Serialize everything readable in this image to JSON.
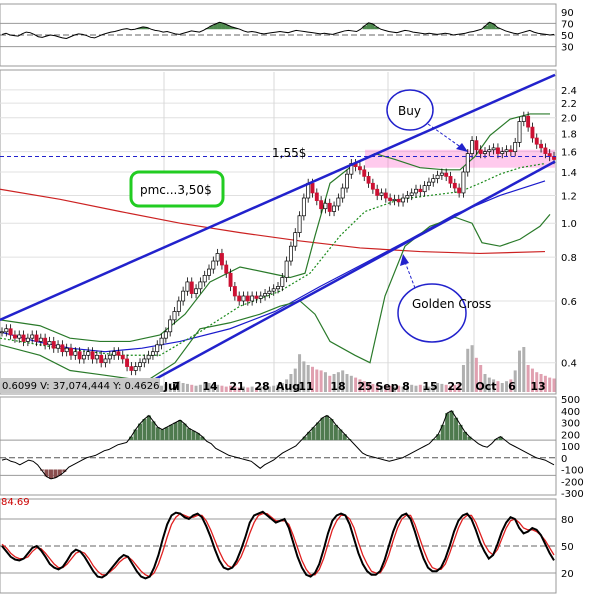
{
  "chart_data": [
    {
      "panel": "rsi",
      "type": "area",
      "ylim": [
        0,
        100
      ],
      "ticks": [
        "90",
        "70",
        "50",
        "30"
      ],
      "ref_lines": [
        70,
        50,
        30
      ],
      "values": [
        51,
        53,
        50,
        49,
        48,
        52,
        55,
        54,
        51,
        47,
        46,
        48,
        50,
        49,
        47,
        45,
        44,
        47,
        50,
        52,
        51,
        49,
        46,
        45,
        48,
        51,
        53,
        55,
        56,
        58,
        60,
        61,
        59,
        60,
        62,
        64,
        63,
        60,
        58,
        57,
        55,
        56,
        54,
        52,
        51,
        53,
        55,
        57,
        56,
        55,
        58,
        62,
        66,
        69,
        72,
        70,
        67,
        64,
        62,
        60,
        57,
        55,
        56,
        55,
        53,
        52,
        53,
        54,
        55,
        56,
        55,
        54,
        56,
        58,
        57,
        56,
        55,
        54,
        53,
        52,
        53,
        52,
        51,
        53,
        55,
        57,
        58,
        57,
        56,
        60,
        66,
        71,
        69,
        64,
        60,
        58,
        56,
        55,
        54,
        56,
        58,
        57,
        55,
        54,
        53,
        52,
        53,
        52,
        51,
        52,
        53,
        52,
        50,
        51,
        52,
        53,
        55,
        56,
        58,
        60,
        66,
        72,
        69,
        63,
        60,
        57,
        55,
        53,
        52,
        54,
        56,
        58,
        55,
        53,
        52,
        51,
        50,
        51
      ]
    },
    {
      "panel": "price",
      "type": "candlestick",
      "scale": "log",
      "ylim": [
        0.33,
        2.7
      ],
      "ticks": [
        "2.4",
        "2.2",
        "2.0",
        "1.8",
        "1.6",
        "1.4",
        "1.2",
        "1.0",
        "0.8",
        "0.6",
        "0.4"
      ],
      "x_labels": [
        "Jul",
        "7",
        "14",
        "21",
        "28",
        "Aug",
        "11",
        "18",
        "25",
        "Sep",
        "8",
        "15",
        "22",
        "Oct",
        "6",
        "13"
      ],
      "legend_text": "0.6099   V: 37,074,444   Y: 0.4626",
      "price_level_label": "1,55$",
      "price_level": 1.55,
      "target_box_label": "pmc...3,50$",
      "buy_label": "Buy",
      "golden_cross_label": "Golden Cross",
      "close": [
        0.49,
        0.5,
        0.48,
        0.47,
        0.48,
        0.46,
        0.47,
        0.48,
        0.46,
        0.47,
        0.45,
        0.46,
        0.44,
        0.45,
        0.43,
        0.44,
        0.42,
        0.43,
        0.41,
        0.42,
        0.43,
        0.41,
        0.42,
        0.4,
        0.41,
        0.42,
        0.43,
        0.42,
        0.41,
        0.39,
        0.38,
        0.39,
        0.4,
        0.41,
        0.42,
        0.43,
        0.45,
        0.47,
        0.49,
        0.53,
        0.56,
        0.6,
        0.64,
        0.68,
        0.63,
        0.65,
        0.68,
        0.71,
        0.74,
        0.78,
        0.82,
        0.76,
        0.72,
        0.66,
        0.62,
        0.6,
        0.62,
        0.6,
        0.62,
        0.61,
        0.62,
        0.63,
        0.64,
        0.65,
        0.66,
        0.7,
        0.78,
        0.86,
        0.94,
        1.05,
        1.18,
        1.3,
        1.22,
        1.16,
        1.1,
        1.14,
        1.08,
        1.12,
        1.18,
        1.26,
        1.38,
        1.48,
        1.45,
        1.42,
        1.36,
        1.3,
        1.25,
        1.2,
        1.22,
        1.18,
        1.16,
        1.17,
        1.15,
        1.18,
        1.2,
        1.22,
        1.25,
        1.23,
        1.28,
        1.31,
        1.34,
        1.37,
        1.39,
        1.36,
        1.3,
        1.26,
        1.22,
        1.4,
        1.58,
        1.72,
        1.62,
        1.58,
        1.6,
        1.62,
        1.64,
        1.58,
        1.6,
        1.62,
        1.6,
        1.7,
        1.95,
        2.02,
        1.88,
        1.75,
        1.68,
        1.64,
        1.58,
        1.55,
        1.52
      ],
      "volume": [
        0.08,
        0.06,
        0.05,
        0.05,
        0.06,
        0.04,
        0.05,
        0.05,
        0.04,
        0.05,
        0.04,
        0.05,
        0.04,
        0.04,
        0.05,
        0.04,
        0.05,
        0.04,
        0.03,
        0.04,
        0.05,
        0.04,
        0.03,
        0.04,
        0.05,
        0.04,
        0.03,
        0.04,
        0.05,
        0.06,
        0.07,
        0.05,
        0.06,
        0.05,
        0.07,
        0.06,
        0.08,
        0.07,
        0.09,
        0.1,
        0.11,
        0.12,
        0.1,
        0.09,
        0.08,
        0.07,
        0.08,
        0.09,
        0.1,
        0.09,
        0.08,
        0.07,
        0.06,
        0.07,
        0.06,
        0.05,
        0.06,
        0.05,
        0.06,
        0.05,
        0.06,
        0.07,
        0.06,
        0.07,
        0.08,
        0.1,
        0.14,
        0.2,
        0.26,
        0.42,
        0.34,
        0.3,
        0.28,
        0.25,
        0.24,
        0.22,
        0.18,
        0.2,
        0.22,
        0.24,
        0.2,
        0.18,
        0.16,
        0.14,
        0.12,
        0.1,
        0.09,
        0.08,
        0.07,
        0.08,
        0.07,
        0.06,
        0.07,
        0.06,
        0.07,
        0.08,
        0.07,
        0.08,
        0.07,
        0.06,
        0.08,
        0.1,
        0.09,
        0.08,
        0.07,
        0.08,
        0.09,
        0.3,
        0.48,
        0.52,
        0.38,
        0.3,
        0.2,
        0.16,
        0.14,
        0.12,
        0.1,
        0.12,
        0.14,
        0.24,
        0.46,
        0.5,
        0.3,
        0.26,
        0.22,
        0.2,
        0.18,
        0.16,
        0.15
      ],
      "series": [
        {
          "name": "",
          "color": "#1a1acc",
          "points": [
            [
              0,
              0.49
            ],
            [
              36,
              0.46
            ],
            [
              70,
              0.44
            ],
            [
              105,
              0.43
            ],
            [
              142,
              0.44
            ],
            [
              180,
              0.46
            ],
            [
              230,
              0.5
            ],
            [
              275,
              0.56
            ],
            [
              320,
              0.66
            ],
            [
              365,
              0.77
            ],
            [
              410,
              0.9
            ],
            [
              455,
              1.06
            ],
            [
              500,
              1.2
            ],
            [
              545,
              1.32
            ]
          ]
        },
        {
          "name": "",
          "color": "#cc2222",
          "points": [
            [
              0,
              1.25
            ],
            [
              60,
              1.17
            ],
            [
              120,
              1.08
            ],
            [
              180,
              1.0
            ],
            [
              240,
              0.94
            ],
            [
              300,
              0.89
            ],
            [
              360,
              0.85
            ],
            [
              420,
              0.83
            ],
            [
              480,
              0.82
            ],
            [
              545,
              0.83
            ]
          ]
        },
        {
          "name": "",
          "color": "#1a8a1a",
          "dash": true,
          "points": [
            [
              0,
              0.47
            ],
            [
              60,
              0.44
            ],
            [
              120,
              0.42
            ],
            [
              160,
              0.42
            ],
            [
              200,
              0.49
            ],
            [
              240,
              0.58
            ],
            [
              280,
              0.64
            ],
            [
              310,
              0.72
            ],
            [
              340,
              0.92
            ],
            [
              365,
              1.08
            ],
            [
              400,
              1.17
            ],
            [
              430,
              1.2
            ],
            [
              460,
              1.23
            ],
            [
              480,
              1.3
            ],
            [
              500,
              1.38
            ],
            [
              520,
              1.44
            ],
            [
              545,
              1.48
            ]
          ]
        },
        {
          "name": "",
          "color": "#2a7a2a",
          "points": [
            [
              0,
              0.53
            ],
            [
              40,
              0.51
            ],
            [
              70,
              0.47
            ],
            [
              100,
              0.46
            ],
            [
              130,
              0.46
            ],
            [
              160,
              0.48
            ],
            [
              185,
              0.55
            ],
            [
              210,
              0.68
            ],
            [
              240,
              0.75
            ],
            [
              270,
              0.72
            ],
            [
              290,
              0.7
            ],
            [
              305,
              0.72
            ],
            [
              315,
              0.92
            ],
            [
              330,
              1.3
            ],
            [
              355,
              1.48
            ],
            [
              375,
              1.58
            ],
            [
              395,
              1.52
            ],
            [
              420,
              1.44
            ],
            [
              445,
              1.42
            ],
            [
              460,
              1.42
            ],
            [
              475,
              1.55
            ],
            [
              490,
              1.78
            ],
            [
              510,
              1.98
            ],
            [
              530,
              2.05
            ],
            [
              550,
              2.05
            ]
          ]
        },
        {
          "name": "",
          "color": "#2a7a2a",
          "points": [
            [
              0,
              0.45
            ],
            [
              40,
              0.42
            ],
            [
              70,
              0.38
            ],
            [
              100,
              0.37
            ],
            [
              130,
              0.36
            ],
            [
              150,
              0.36
            ],
            [
              175,
              0.4
            ],
            [
              200,
              0.5
            ],
            [
              230,
              0.52
            ],
            [
              260,
              0.55
            ],
            [
              280,
              0.58
            ],
            [
              300,
              0.6
            ],
            [
              315,
              0.55
            ],
            [
              330,
              0.46
            ],
            [
              355,
              0.42
            ],
            [
              370,
              0.4
            ],
            [
              385,
              0.62
            ],
            [
              405,
              0.86
            ],
            [
              430,
              0.98
            ],
            [
              455,
              1.04
            ],
            [
              472,
              1.0
            ],
            [
              482,
              0.88
            ],
            [
              500,
              0.86
            ],
            [
              520,
              0.9
            ],
            [
              540,
              0.98
            ],
            [
              550,
              1.06
            ]
          ]
        }
      ],
      "channel": [
        {
          "start": [
            0,
            0.53
          ],
          "end": [
            555,
            2.65
          ]
        },
        {
          "start": [
            140,
            0.34
          ],
          "end": [
            555,
            1.5
          ]
        }
      ]
    },
    {
      "panel": "macd_hist",
      "type": "area",
      "ylim": [
        -300,
        500
      ],
      "ticks": [
        "500",
        "400",
        "300",
        "200",
        "100",
        "0",
        "-100",
        "-200",
        "-300"
      ],
      "values": [
        -20,
        -10,
        -30,
        -40,
        -60,
        -40,
        -20,
        -30,
        -60,
        -110,
        -160,
        -180,
        -170,
        -150,
        -120,
        -80,
        -60,
        -40,
        -20,
        0,
        10,
        20,
        40,
        60,
        70,
        90,
        110,
        120,
        130,
        180,
        240,
        290,
        330,
        360,
        310,
        260,
        240,
        260,
        280,
        300,
        320,
        290,
        250,
        230,
        210,
        180,
        140,
        120,
        80,
        60,
        40,
        20,
        10,
        0,
        -10,
        -20,
        -30,
        -60,
        -90,
        -60,
        -40,
        -20,
        10,
        40,
        60,
        80,
        100,
        140,
        180,
        220,
        260,
        300,
        340,
        360,
        330,
        280,
        240,
        200,
        160,
        120,
        80,
        40,
        20,
        10,
        0,
        -10,
        -20,
        -30,
        -20,
        -10,
        0,
        20,
        40,
        60,
        80,
        100,
        120,
        160,
        200,
        280,
        380,
        400,
        340,
        280,
        220,
        180,
        150,
        120,
        100,
        90,
        120,
        160,
        180,
        150,
        120,
        100,
        80,
        60,
        40,
        20,
        0,
        -10,
        -20,
        -40,
        -60
      ]
    },
    {
      "panel": "stochastic",
      "type": "line",
      "ylim": [
        0,
        100
      ],
      "ticks": [
        "80",
        "50",
        "20"
      ],
      "ref_lines": [
        80,
        50,
        20
      ],
      "value_label": "84.69",
      "series": [
        {
          "name": "",
          "color": "#000000",
          "values": [
            50,
            44,
            38,
            35,
            34,
            36,
            42,
            48,
            50,
            45,
            38,
            30,
            26,
            24,
            27,
            34,
            42,
            46,
            44,
            38,
            30,
            22,
            16,
            15,
            18,
            24,
            30,
            36,
            40,
            38,
            30,
            22,
            16,
            14,
            16,
            26,
            40,
            58,
            74,
            84,
            87,
            86,
            82,
            80,
            84,
            86,
            82,
            72,
            60,
            46,
            34,
            26,
            24,
            26,
            34,
            46,
            60,
            76,
            84,
            86,
            88,
            84,
            80,
            76,
            78,
            80,
            70,
            54,
            38,
            26,
            18,
            16,
            20,
            30,
            46,
            64,
            78,
            84,
            86,
            84,
            74,
            58,
            42,
            30,
            22,
            18,
            18,
            22,
            34,
            50,
            66,
            78,
            84,
            86,
            80,
            66,
            50,
            36,
            26,
            22,
            22,
            26,
            36,
            50,
            66,
            78,
            84,
            86,
            80,
            68,
            54,
            44,
            36,
            40,
            52,
            66,
            76,
            82,
            80,
            70,
            64,
            66,
            70,
            68,
            62,
            52,
            42,
            34
          ]
        },
        {
          "name": "",
          "color": "#e02020",
          "values": [
            52,
            48,
            42,
            38,
            36,
            36,
            38,
            44,
            48,
            47,
            42,
            36,
            30,
            26,
            26,
            30,
            36,
            42,
            44,
            42,
            36,
            28,
            22,
            18,
            18,
            22,
            26,
            32,
            36,
            38,
            34,
            28,
            22,
            18,
            16,
            20,
            30,
            44,
            60,
            74,
            82,
            86,
            84,
            82,
            82,
            84,
            84,
            78,
            68,
            56,
            44,
            34,
            28,
            26,
            30,
            38,
            50,
            64,
            76,
            84,
            86,
            86,
            82,
            78,
            78,
            78,
            74,
            62,
            48,
            34,
            24,
            18,
            18,
            24,
            36,
            52,
            68,
            78,
            84,
            84,
            80,
            70,
            54,
            40,
            30,
            22,
            20,
            20,
            28,
            40,
            56,
            70,
            80,
            84,
            84,
            74,
            60,
            46,
            34,
            26,
            24,
            24,
            30,
            42,
            56,
            70,
            80,
            84,
            84,
            76,
            64,
            52,
            44,
            40,
            46,
            58,
            70,
            78,
            80,
            76,
            70,
            68,
            68,
            66,
            62,
            56,
            48,
            40
          ]
        }
      ]
    }
  ]
}
